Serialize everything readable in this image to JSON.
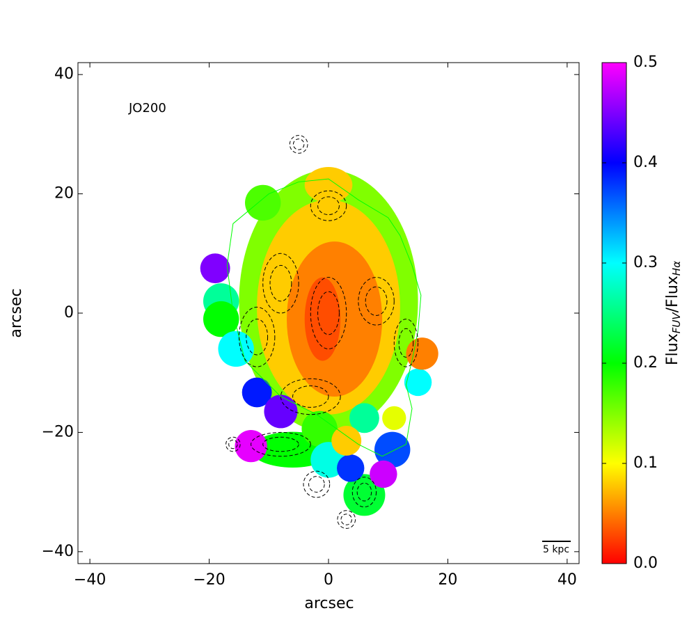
{
  "chart_data": {
    "type": "map",
    "annotation": "JO200",
    "xlabel": "arcsec",
    "ylabel": "arcsec",
    "xlim": [
      -42,
      42
    ],
    "ylim": [
      -42,
      42
    ],
    "xticks": [
      {
        "value": -40,
        "label": "−40"
      },
      {
        "value": -20,
        "label": "−20"
      },
      0,
      20,
      40
    ],
    "yticks": [
      {
        "value": -40,
        "label": "−40"
      },
      {
        "value": -20,
        "label": "−20"
      },
      0,
      20,
      40
    ],
    "colorbar_label": [
      "Flux",
      "FUV",
      "/Flux",
      "Hα"
    ],
    "clim": [
      0,
      0.5
    ],
    "cticks": [
      {
        "value": 0,
        "label": "0.0"
      },
      0.1,
      0.2,
      0.3,
      0.4,
      0.5
    ],
    "colormap": [
      "#ff0000",
      "#ffff00",
      "#00ff00",
      "#00ffff",
      "#0000ff",
      "#ff00ff"
    ],
    "scale_bar": "5 kpc",
    "regions": [
      {
        "x": 0,
        "y": 2,
        "rx": 15,
        "ry": 22,
        "value": 0.15
      },
      {
        "x": -11,
        "y": 18.5,
        "rx": 3,
        "ry": 3,
        "value": 0.17
      },
      {
        "x": 0,
        "y": 21.5,
        "rx": 4,
        "ry": 3,
        "value": 0.08
      },
      {
        "x": 0,
        "y": 1,
        "rx": 12,
        "ry": 18,
        "value": 0.08
      },
      {
        "x": 1,
        "y": -1,
        "rx": 8,
        "ry": 13,
        "value": 0.05
      },
      {
        "x": -1,
        "y": -1,
        "rx": 3,
        "ry": 7,
        "value": 0.03
      },
      {
        "x": -18,
        "y": 2,
        "rx": 3,
        "ry": 3,
        "value": 0.26
      },
      {
        "x": -18,
        "y": -1,
        "rx": 3,
        "ry": 3,
        "value": 0.2
      },
      {
        "x": -19,
        "y": 7.5,
        "rx": 2.5,
        "ry": 2.5,
        "value": 0.45
      },
      {
        "x": -15.5,
        "y": -6,
        "rx": 3,
        "ry": 3,
        "value": 0.3
      },
      {
        "x": -12,
        "y": -13.3,
        "rx": 2.5,
        "ry": 2.5,
        "value": 0.39
      },
      {
        "x": -8,
        "y": -16.5,
        "rx": 2.8,
        "ry": 2.8,
        "value": 0.44
      },
      {
        "x": -6,
        "y": -22.9,
        "rx": 7,
        "ry": 3,
        "value": 0.2
      },
      {
        "x": -13,
        "y": -22.3,
        "rx": 2.7,
        "ry": 2.7,
        "value": 0.49
      },
      {
        "x": -1.5,
        "y": -19.4,
        "rx": 3,
        "ry": 3,
        "value": 0.18
      },
      {
        "x": 0,
        "y": -24.6,
        "rx": 3,
        "ry": 3,
        "value": 0.29
      },
      {
        "x": 6,
        "y": -30.5,
        "rx": 3.5,
        "ry": 3.5,
        "value": 0.22
      },
      {
        "x": 3.7,
        "y": -26,
        "rx": 2.3,
        "ry": 2.3,
        "value": 0.38
      },
      {
        "x": 6,
        "y": -17.6,
        "rx": 2.5,
        "ry": 2.5,
        "value": 0.26
      },
      {
        "x": 3,
        "y": -21.4,
        "rx": 2.5,
        "ry": 2.5,
        "value": 0.08
      },
      {
        "x": 10.7,
        "y": -22.9,
        "rx": 3,
        "ry": 3,
        "value": 0.37
      },
      {
        "x": 9.2,
        "y": -27,
        "rx": 2.3,
        "ry": 2.3,
        "value": 0.48
      },
      {
        "x": 11,
        "y": -17.6,
        "rx": 2,
        "ry": 2,
        "value": 0.11
      },
      {
        "x": 15,
        "y": -11.6,
        "rx": 2.3,
        "ry": 2.3,
        "value": 0.3
      },
      {
        "x": 15.7,
        "y": -6.8,
        "rx": 2.7,
        "ry": 2.7,
        "value": 0.05
      }
    ],
    "contours": [
      {
        "x": -5,
        "y": 28.3,
        "rx": 1.5,
        "ry": 1.5
      },
      {
        "x": -2,
        "y": -28.7,
        "rx": 2.2,
        "ry": 2.2
      },
      {
        "x": 3,
        "y": -34.6,
        "rx": 1.5,
        "ry": 1.5
      },
      {
        "x": -16,
        "y": -22,
        "rx": 1.2,
        "ry": 1.2
      },
      {
        "x": 0,
        "y": 0,
        "rx": 3,
        "ry": 6
      },
      {
        "x": -8,
        "y": 5,
        "rx": 3,
        "ry": 5
      },
      {
        "x": 8,
        "y": 2,
        "rx": 3,
        "ry": 4
      },
      {
        "x": -3,
        "y": -14,
        "rx": 5,
        "ry": 3
      },
      {
        "x": -8,
        "y": -22,
        "rx": 5,
        "ry": 2
      },
      {
        "x": 0,
        "y": 18,
        "rx": 3,
        "ry": 2.5
      },
      {
        "x": -12,
        "y": -4,
        "rx": 3,
        "ry": 5
      },
      {
        "x": 13,
        "y": -5,
        "rx": 2,
        "ry": 4
      },
      {
        "x": 6,
        "y": -30,
        "rx": 2,
        "ry": 2.5
      }
    ],
    "outline": {
      "color": "#00ff00",
      "points": [
        [
          -16,
          15
        ],
        [
          -10,
          20
        ],
        [
          -5,
          22
        ],
        [
          0,
          22.5
        ],
        [
          5,
          19
        ],
        [
          10,
          16
        ],
        [
          12,
          13
        ],
        [
          14,
          8
        ],
        [
          15.5,
          3
        ],
        [
          15,
          -3
        ],
        [
          14,
          -8
        ],
        [
          13,
          -12
        ],
        [
          14,
          -16
        ],
        [
          13,
          -22
        ],
        [
          9,
          -24
        ],
        [
          5,
          -22
        ],
        [
          -2,
          -17
        ],
        [
          -8,
          -14
        ],
        [
          -14,
          -8
        ],
        [
          -16,
          0
        ],
        [
          -17,
          8
        ]
      ]
    }
  }
}
